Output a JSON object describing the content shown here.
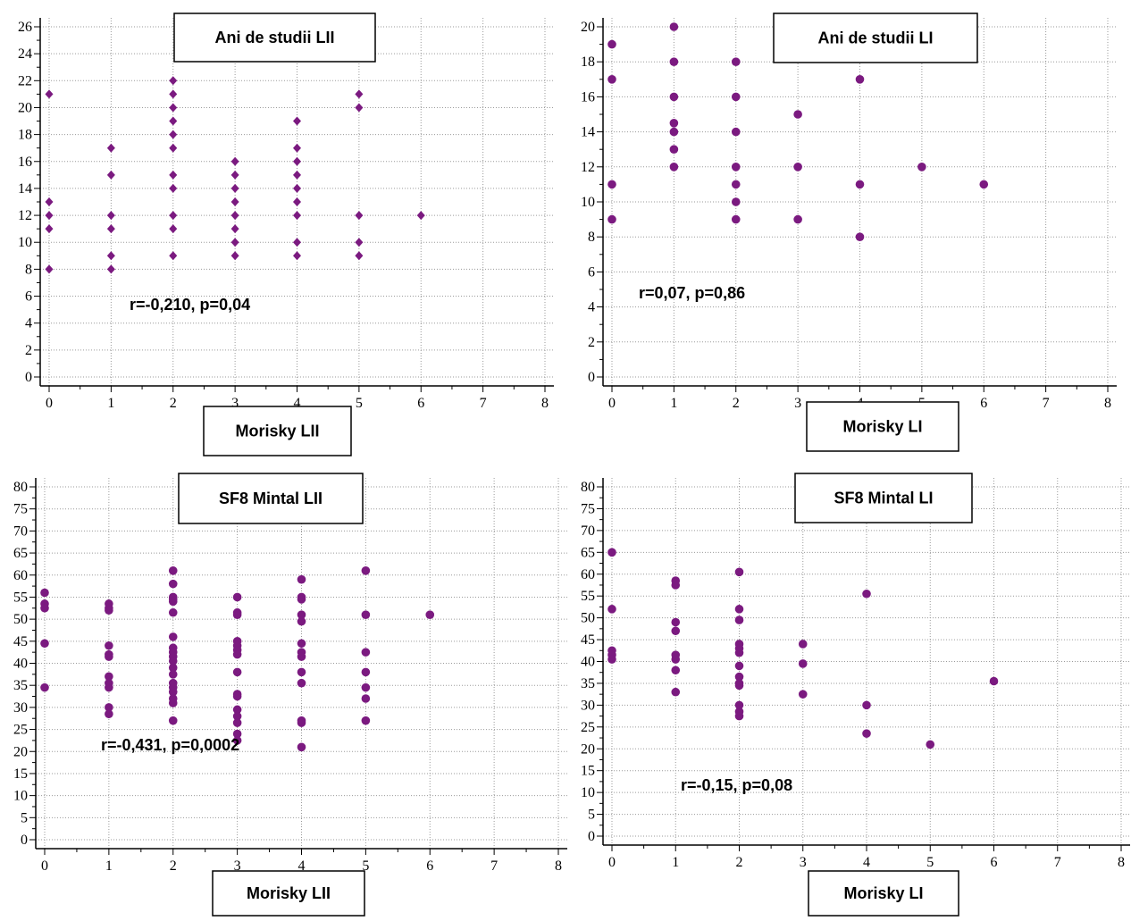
{
  "colors": {
    "marker": "#7b1a80",
    "grid": "#9a9a9a",
    "axis": "#000000"
  },
  "chart_data": [
    {
      "type": "scatter",
      "title": "Ani de studii LII",
      "xlabel": "Morisky LII",
      "ylabel": "",
      "marker": "diamond",
      "xlim": [
        0,
        8
      ],
      "ylim": [
        0,
        26
      ],
      "xticks": [
        0,
        1,
        2,
        3,
        4,
        5,
        6,
        7,
        8
      ],
      "yticks": [
        0,
        2,
        4,
        6,
        8,
        10,
        12,
        14,
        16,
        18,
        20,
        22,
        24,
        26
      ],
      "annotation": "r=-0,210, p=0,04",
      "points": [
        [
          0,
          21
        ],
        [
          0,
          13
        ],
        [
          0,
          12
        ],
        [
          0,
          11
        ],
        [
          0,
          8
        ],
        [
          1,
          17
        ],
        [
          1,
          15
        ],
        [
          1,
          12
        ],
        [
          1,
          11
        ],
        [
          1,
          9
        ],
        [
          1,
          8
        ],
        [
          2,
          22
        ],
        [
          2,
          21
        ],
        [
          2,
          20
        ],
        [
          2,
          19
        ],
        [
          2,
          18
        ],
        [
          2,
          17
        ],
        [
          2,
          15
        ],
        [
          2,
          14
        ],
        [
          2,
          12
        ],
        [
          2,
          11
        ],
        [
          2,
          9
        ],
        [
          3,
          16
        ],
        [
          3,
          15
        ],
        [
          3,
          14
        ],
        [
          3,
          13
        ],
        [
          3,
          12
        ],
        [
          3,
          11
        ],
        [
          3,
          10
        ],
        [
          3,
          9
        ],
        [
          4,
          19
        ],
        [
          4,
          17
        ],
        [
          4,
          16
        ],
        [
          4,
          15
        ],
        [
          4,
          14
        ],
        [
          4,
          13
        ],
        [
          4,
          12
        ],
        [
          4,
          10
        ],
        [
          4,
          9
        ],
        [
          5,
          21
        ],
        [
          5,
          20
        ],
        [
          5,
          12
        ],
        [
          5,
          10
        ],
        [
          5,
          9
        ],
        [
          6,
          12
        ]
      ]
    },
    {
      "type": "scatter",
      "title": "Ani de studii LI",
      "xlabel": "Morisky LI",
      "ylabel": "",
      "marker": "circle",
      "xlim": [
        0,
        8
      ],
      "ylim": [
        0,
        20
      ],
      "xticks": [
        0,
        1,
        2,
        3,
        4,
        5,
        6,
        7,
        8
      ],
      "yticks": [
        0,
        2,
        4,
        6,
        8,
        10,
        12,
        14,
        16,
        18,
        20
      ],
      "annotation": "r=0,07, p=0,86",
      "points": [
        [
          0,
          19
        ],
        [
          0,
          17
        ],
        [
          0,
          11
        ],
        [
          0,
          9
        ],
        [
          1,
          20
        ],
        [
          1,
          18
        ],
        [
          1,
          16
        ],
        [
          1,
          14.5
        ],
        [
          1,
          14
        ],
        [
          1,
          13
        ],
        [
          1,
          12
        ],
        [
          2,
          18
        ],
        [
          2,
          16
        ],
        [
          2,
          14
        ],
        [
          2,
          12
        ],
        [
          2,
          11
        ],
        [
          2,
          10
        ],
        [
          2,
          9
        ],
        [
          3,
          15
        ],
        [
          3,
          12
        ],
        [
          3,
          9
        ],
        [
          4,
          17
        ],
        [
          4,
          11
        ],
        [
          4,
          8
        ],
        [
          5,
          12
        ],
        [
          6,
          11
        ]
      ]
    },
    {
      "type": "scatter",
      "title": "SF8 Mintal LII",
      "xlabel": "Morisky LII",
      "ylabel": "",
      "marker": "circle",
      "xlim": [
        0,
        8
      ],
      "ylim": [
        0,
        80
      ],
      "xticks": [
        0,
        1,
        2,
        3,
        4,
        5,
        6,
        7,
        8
      ],
      "yticks": [
        0,
        5,
        10,
        15,
        20,
        25,
        30,
        35,
        40,
        45,
        50,
        55,
        60,
        65,
        70,
        75,
        80
      ],
      "annotation": "r=-0,431, p=0,0002",
      "points": [
        [
          0,
          56
        ],
        [
          0,
          53.5
        ],
        [
          0,
          52.5
        ],
        [
          0,
          44.5
        ],
        [
          0,
          34.5
        ],
        [
          1,
          53.5
        ],
        [
          1,
          52.5
        ],
        [
          1,
          52
        ],
        [
          1,
          44
        ],
        [
          1,
          42
        ],
        [
          1,
          41.5
        ],
        [
          1,
          37
        ],
        [
          1,
          35.5
        ],
        [
          1,
          34.5
        ],
        [
          1,
          30
        ],
        [
          1,
          28.5
        ],
        [
          2,
          61
        ],
        [
          2,
          58
        ],
        [
          2,
          55
        ],
        [
          2,
          54.5
        ],
        [
          2,
          54
        ],
        [
          2,
          51.5
        ],
        [
          2,
          46
        ],
        [
          2,
          43.5
        ],
        [
          2,
          42.5
        ],
        [
          2,
          41.5
        ],
        [
          2,
          40.5
        ],
        [
          2,
          39
        ],
        [
          2,
          37.5
        ],
        [
          2,
          35.5
        ],
        [
          2,
          34.5
        ],
        [
          2,
          33.5
        ],
        [
          2,
          32
        ],
        [
          2,
          31
        ],
        [
          2,
          27
        ],
        [
          3,
          55
        ],
        [
          3,
          51.5
        ],
        [
          3,
          51
        ],
        [
          3,
          45
        ],
        [
          3,
          44
        ],
        [
          3,
          43
        ],
        [
          3,
          42
        ],
        [
          3,
          38
        ],
        [
          3,
          33
        ],
        [
          3,
          32.5
        ],
        [
          3,
          29.5
        ],
        [
          3,
          28
        ],
        [
          3,
          26.5
        ],
        [
          3,
          24
        ],
        [
          3,
          22.5
        ],
        [
          4,
          59
        ],
        [
          4,
          55
        ],
        [
          4,
          54.5
        ],
        [
          4,
          51
        ],
        [
          4,
          49.5
        ],
        [
          4,
          44.5
        ],
        [
          4,
          42.5
        ],
        [
          4,
          41.5
        ],
        [
          4,
          38
        ],
        [
          4,
          35.5
        ],
        [
          4,
          27
        ],
        [
          4,
          26.5
        ],
        [
          4,
          21
        ],
        [
          5,
          61
        ],
        [
          5,
          51
        ],
        [
          5,
          42.5
        ],
        [
          5,
          38
        ],
        [
          5,
          34.5
        ],
        [
          5,
          32
        ],
        [
          5,
          27
        ],
        [
          6,
          51
        ]
      ]
    },
    {
      "type": "scatter",
      "title": "SF8 Mintal LI",
      "xlabel": "Morisky LI",
      "ylabel": "",
      "marker": "circle",
      "xlim": [
        0,
        8
      ],
      "ylim": [
        0,
        80
      ],
      "xticks": [
        0,
        1,
        2,
        3,
        4,
        5,
        6,
        7,
        8
      ],
      "yticks": [
        0,
        5,
        10,
        15,
        20,
        25,
        30,
        35,
        40,
        45,
        50,
        55,
        60,
        65,
        70,
        75,
        80
      ],
      "annotation": "r=-0,15, p=0,08",
      "points": [
        [
          0,
          65
        ],
        [
          0,
          52
        ],
        [
          0,
          42.5
        ],
        [
          0,
          41.5
        ],
        [
          0,
          40.5
        ],
        [
          1,
          58.5
        ],
        [
          1,
          57.5
        ],
        [
          1,
          49
        ],
        [
          1,
          47
        ],
        [
          1,
          41.5
        ],
        [
          1,
          40.5
        ],
        [
          1,
          38
        ],
        [
          1,
          33
        ],
        [
          2,
          60.5
        ],
        [
          2,
          52
        ],
        [
          2,
          49.5
        ],
        [
          2,
          44
        ],
        [
          2,
          43
        ],
        [
          2,
          42
        ],
        [
          2,
          39
        ],
        [
          2,
          36.5
        ],
        [
          2,
          35
        ],
        [
          2,
          34.5
        ],
        [
          2,
          30
        ],
        [
          2,
          28.5
        ],
        [
          2,
          27.5
        ],
        [
          3,
          44
        ],
        [
          3,
          39.5
        ],
        [
          3,
          32.5
        ],
        [
          4,
          55.5
        ],
        [
          4,
          30
        ],
        [
          4,
          23.5
        ],
        [
          5,
          21
        ],
        [
          6,
          35.5
        ]
      ]
    }
  ]
}
